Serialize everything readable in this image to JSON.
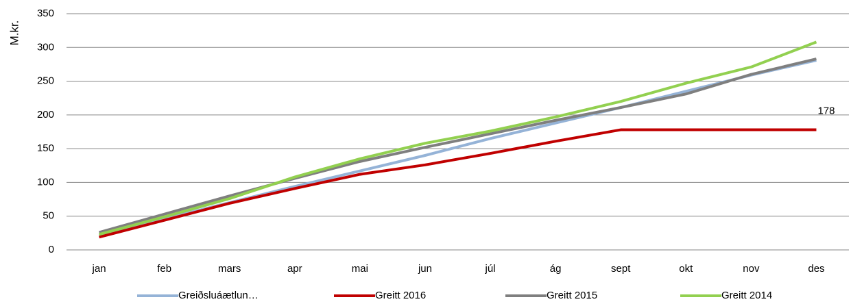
{
  "chart_data": {
    "type": "line",
    "y_label": "M.kr.",
    "categories": [
      "jan",
      "feb",
      "mars",
      "apr",
      "mai",
      "jun",
      "júl",
      "ág",
      "sept",
      "okt",
      "nov",
      "des"
    ],
    "series": [
      {
        "name": "Greiðsluáætlun…",
        "color": "#95b3d7",
        "values": [
          22,
          46,
          70,
          94,
          117,
          140,
          165,
          188,
          211,
          235,
          259,
          281
        ]
      },
      {
        "name": "Greitt 2016",
        "color": "#c00000",
        "values": [
          19,
          44,
          69,
          91,
          112,
          126,
          143,
          161,
          178,
          178,
          178,
          178
        ]
      },
      {
        "name": "Greitt 2015",
        "color": "#7f7f7f",
        "values": [
          26,
          53,
          80,
          106,
          131,
          152,
          172,
          192,
          211,
          231,
          260,
          283
        ]
      },
      {
        "name": "Greitt 2014",
        "color": "#92d050",
        "values": [
          23,
          49,
          76,
          108,
          135,
          158,
          176,
          197,
          220,
          247,
          271,
          308
        ]
      }
    ],
    "ylim": [
      0,
      350
    ],
    "yticks": [
      0,
      50,
      100,
      150,
      200,
      250,
      300,
      350
    ],
    "grid": true,
    "legend": "bottom"
  }
}
